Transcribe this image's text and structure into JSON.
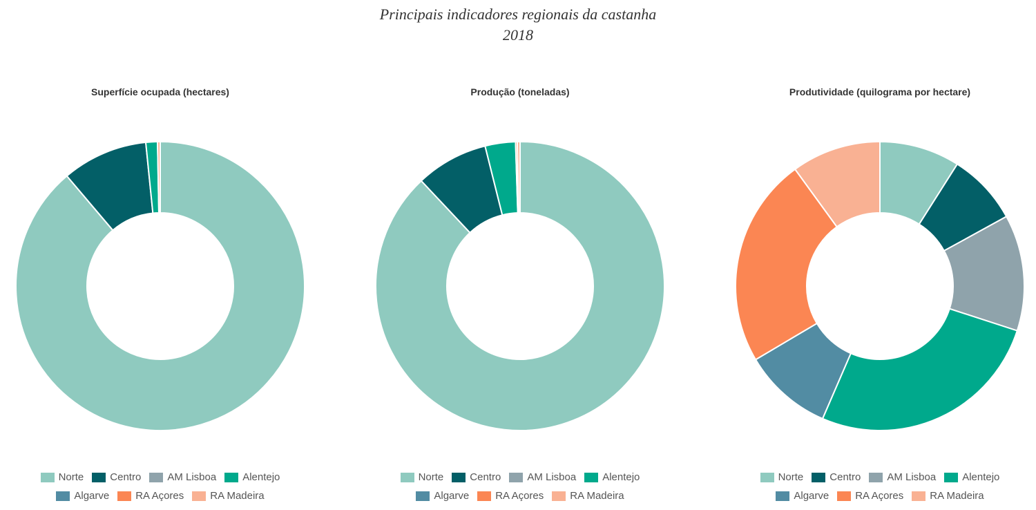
{
  "title_line1": "Principais indicadores regionais da castanha",
  "title_line2": "2018",
  "colors": {
    "Norte": "#8fcabf",
    "Centro": "#035f67",
    "AM Lisboa": "#8fa3ab",
    "Alentejo": "#00a98c",
    "Algarve": "#528ca3",
    "RA Açores": "#fb8653",
    "RA Madeira": "#f9b193"
  },
  "chart_data": [
    {
      "type": "pie",
      "donut": true,
      "title": "Superfície ocupada (hectares)",
      "categories": [
        "Norte",
        "Centro",
        "AM Lisboa",
        "Alentejo",
        "Algarve",
        "RA Açores",
        "RA Madeira"
      ],
      "values": [
        88.8,
        9.6,
        0.0,
        1.3,
        0.0,
        0.0,
        0.3
      ],
      "legend": [
        "Norte",
        "Centro",
        "AM Lisboa",
        "Alentejo",
        "Algarve",
        "RA Açores",
        "RA Madeira"
      ],
      "legend_position": "bottom"
    },
    {
      "type": "pie",
      "donut": true,
      "title": "Produção (toneladas)",
      "categories": [
        "Norte",
        "Centro",
        "AM Lisboa",
        "Alentejo",
        "Algarve",
        "RA Açores",
        "RA Madeira"
      ],
      "values": [
        88.0,
        8.1,
        0.0,
        3.4,
        0.0,
        0.2,
        0.3
      ],
      "legend": [
        "Norte",
        "Centro",
        "AM Lisboa",
        "Alentejo",
        "Algarve",
        "RA Açores",
        "RA Madeira"
      ],
      "legend_position": "bottom"
    },
    {
      "type": "pie",
      "donut": true,
      "title": "Produtividade (quilograma por hectare)",
      "categories": [
        "Norte",
        "Centro",
        "AM Lisboa",
        "Alentejo",
        "Algarve",
        "RA Açores",
        "RA Madeira"
      ],
      "values": [
        9.0,
        8.0,
        13.0,
        26.5,
        10.0,
        23.5,
        10.0
      ],
      "legend": [
        "Norte",
        "Centro",
        "AM Lisboa",
        "Alentejo",
        "Algarve",
        "RA Açores",
        "RA Madeira"
      ],
      "legend_position": "bottom"
    }
  ]
}
